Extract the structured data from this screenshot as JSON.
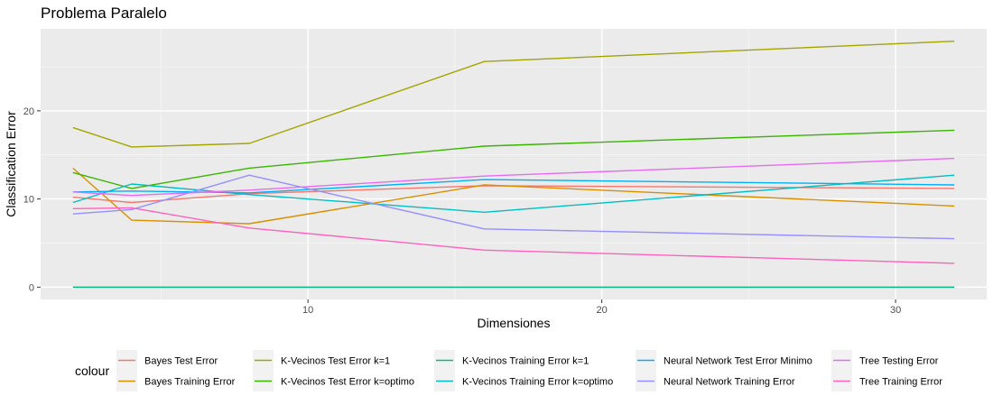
{
  "chart_data": {
    "type": "line",
    "title": "Problema Paralelo",
    "xlabel": "Dimensiones",
    "ylabel": "Classification Error",
    "xlim": [
      0.9,
      33.1
    ],
    "ylim": [
      -1.4,
      29.3
    ],
    "x_ticks": [
      10,
      20,
      30
    ],
    "y_ticks": [
      0,
      10,
      20
    ],
    "grid": true,
    "legend_title": "colour",
    "legend_position": "bottom",
    "x": [
      2,
      4,
      8,
      16,
      32
    ],
    "series": [
      {
        "name": "Bayes Test Error",
        "color": "#F8766D",
        "values": [
          10.2,
          9.6,
          10.6,
          11.5,
          11.2
        ]
      },
      {
        "name": "Bayes Training Error",
        "color": "#D89000",
        "values": [
          13.5,
          7.6,
          7.2,
          11.6,
          9.2
        ]
      },
      {
        "name": "K-Vecinos Test Error k=1",
        "color": "#A3A500",
        "values": [
          18.1,
          15.9,
          16.3,
          25.6,
          27.9
        ]
      },
      {
        "name": "K-Vecinos Test Error k=optimo",
        "color": "#39B600",
        "values": [
          13.0,
          11.2,
          13.5,
          16.0,
          17.8
        ]
      },
      {
        "name": "K-Vecinos Training Error k=1",
        "color": "#00BF7D",
        "values": [
          0.0,
          0.0,
          0.0,
          0.0,
          0.0
        ]
      },
      {
        "name": "K-Vecinos Training Error k=optimo",
        "color": "#00BFC4",
        "values": [
          9.6,
          11.7,
          10.5,
          8.5,
          12.7
        ]
      },
      {
        "name": "Neural Network Test Error Minimo",
        "color": "#00B0F6",
        "values": [
          10.8,
          10.9,
          10.7,
          12.2,
          11.6
        ]
      },
      {
        "name": "Neural Network Training Error",
        "color": "#9590FF",
        "values": [
          8.3,
          8.8,
          12.7,
          6.6,
          5.5
        ]
      },
      {
        "name": "Tree Testing Error",
        "color": "#E76BF3",
        "values": [
          10.8,
          10.4,
          11.0,
          12.6,
          14.6
        ]
      },
      {
        "name": "Tree Training Error",
        "color": "#FF62BC",
        "values": [
          8.9,
          9.0,
          6.7,
          4.2,
          2.7
        ]
      }
    ]
  }
}
